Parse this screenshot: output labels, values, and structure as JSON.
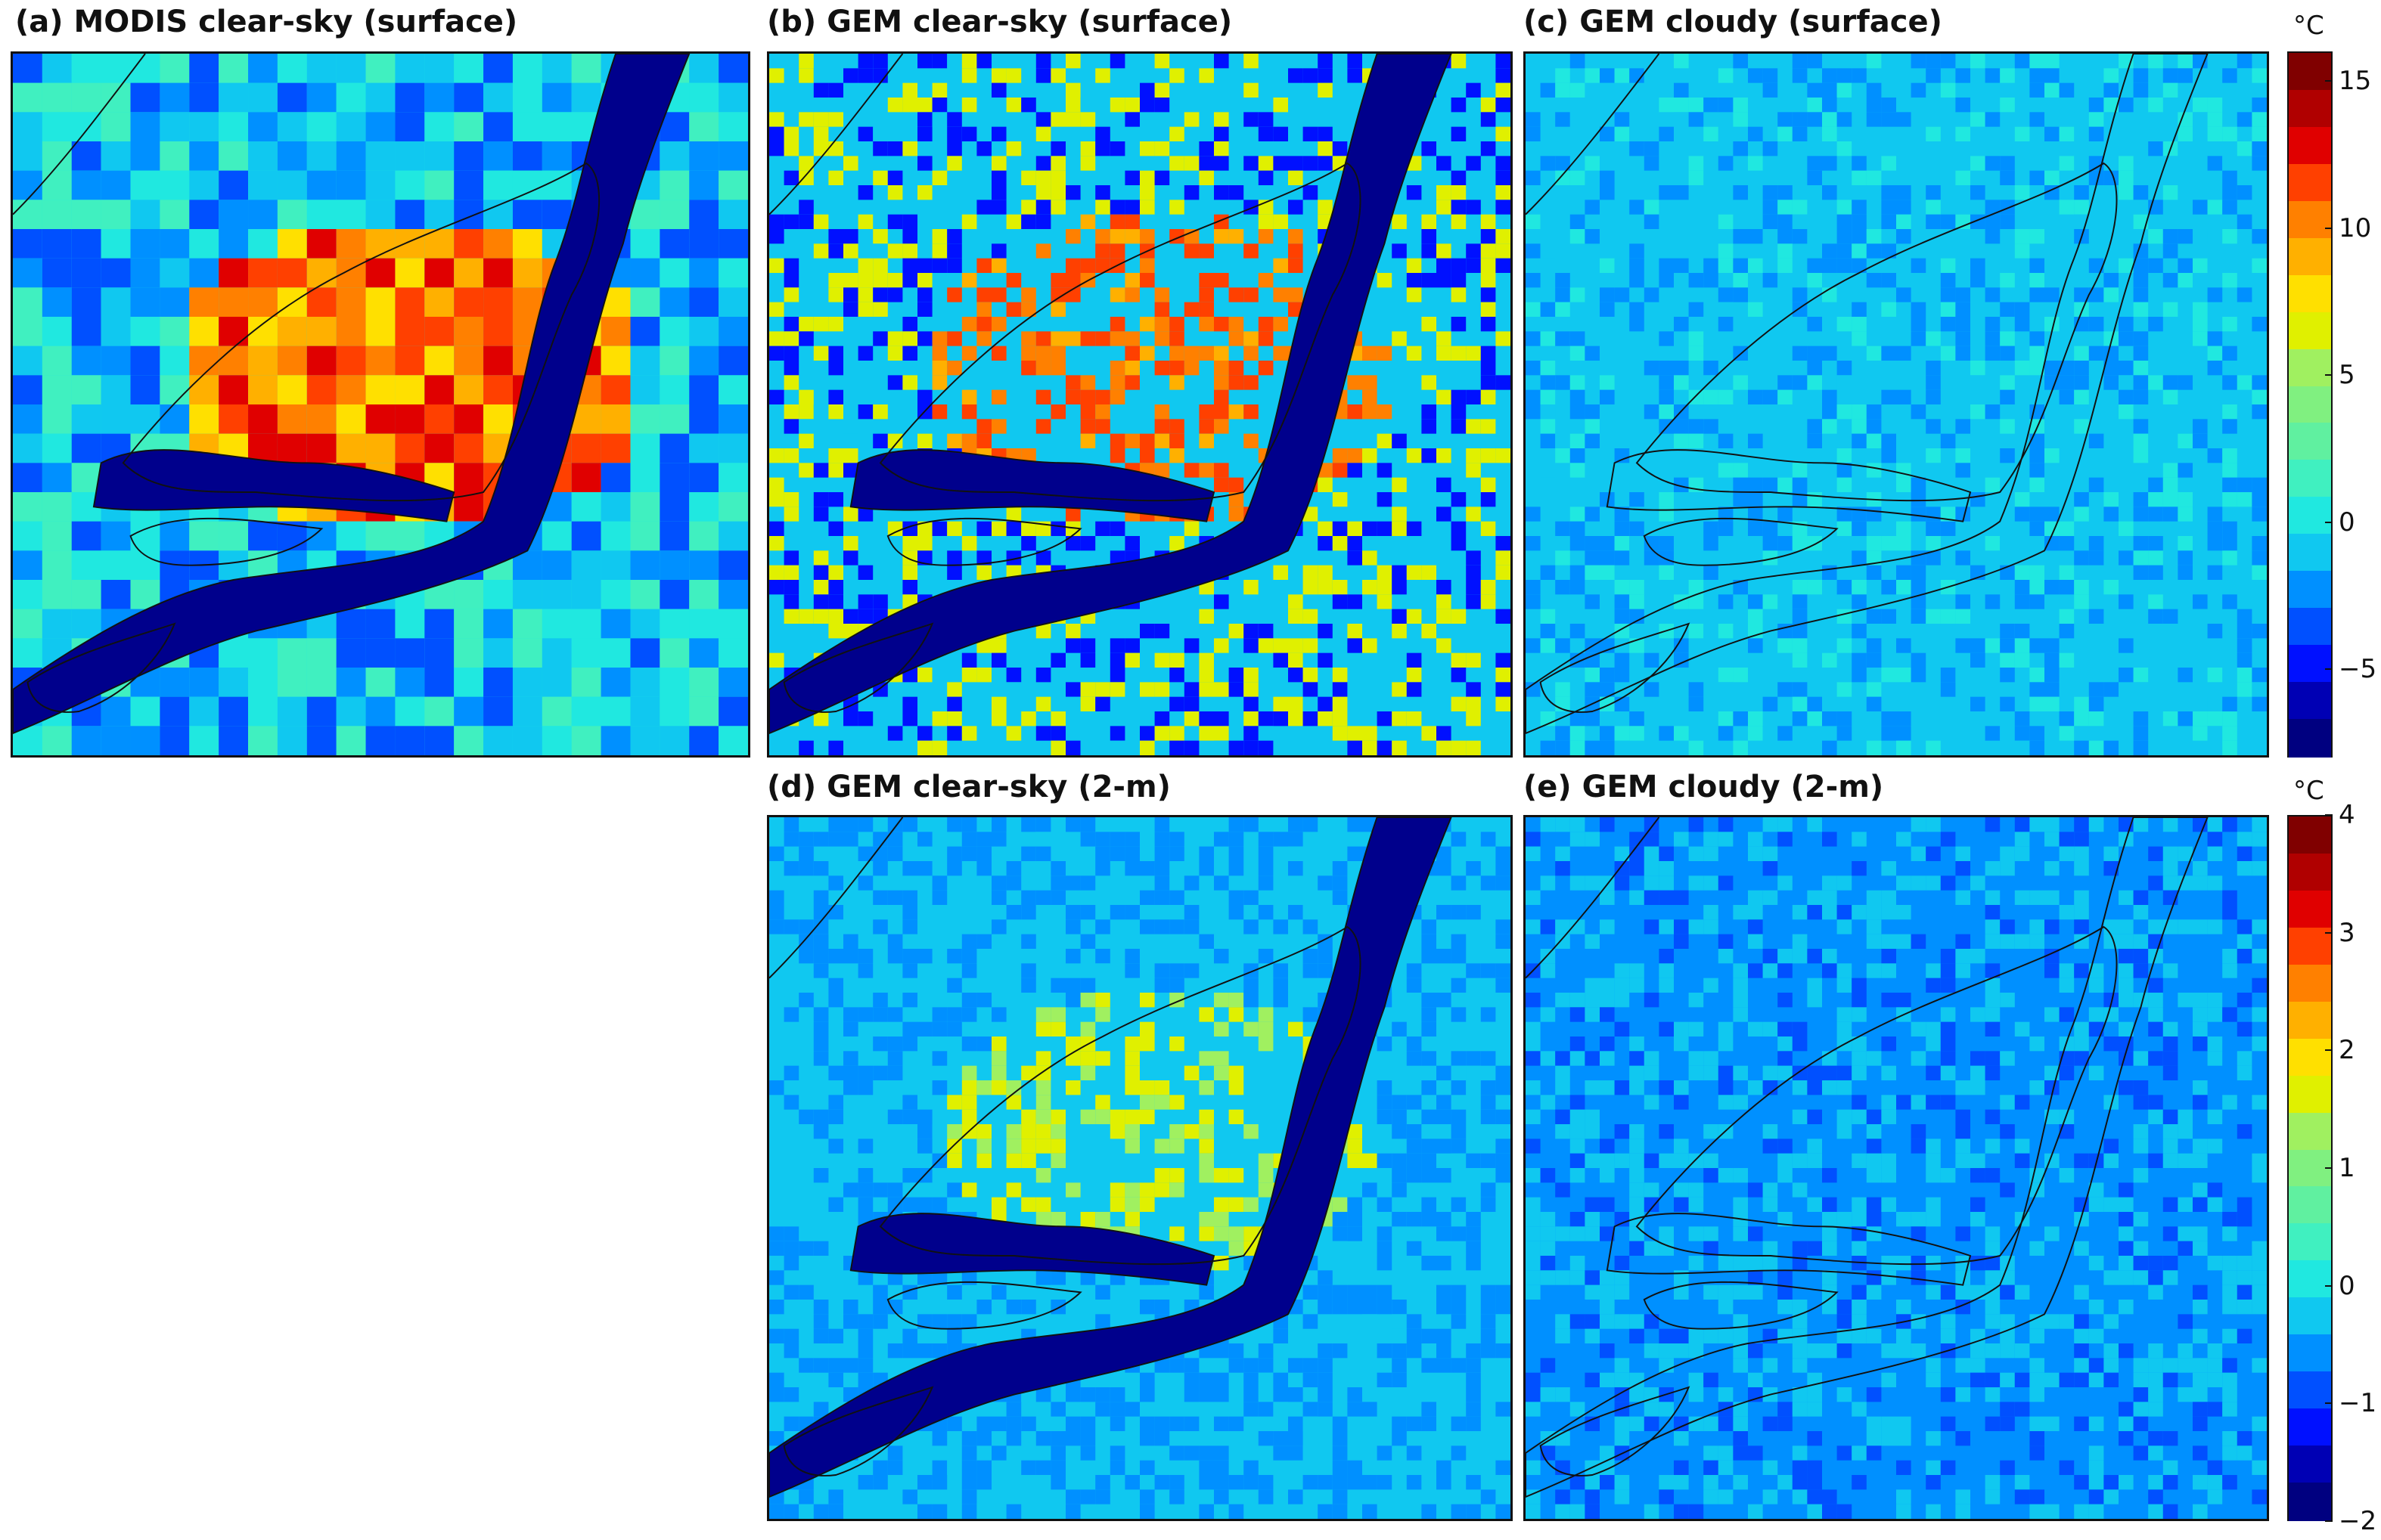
{
  "panels": [
    {
      "id": "a",
      "title": "(a) MODIS clear-sky (surface)",
      "scale": "top",
      "pattern": "modis"
    },
    {
      "id": "b",
      "title": "(b) GEM clear-sky (surface)",
      "scale": "top",
      "pattern": "gem-clear-surface"
    },
    {
      "id": "c",
      "title": "(c) GEM cloudy (surface)",
      "scale": "top",
      "pattern": "gem-cloudy-surface"
    },
    {
      "id": "d",
      "title": "(d) GEM clear-sky (2-m)",
      "scale": "bottom",
      "pattern": "gem-clear-2m"
    },
    {
      "id": "e",
      "title": "(e) GEM cloudy (2-m)",
      "scale": "bottom",
      "pattern": "gem-cloudy-2m"
    }
  ],
  "colorbars": {
    "top": {
      "unit": "°C",
      "min": -8,
      "max": 16,
      "step": 1.5,
      "ticks": [
        "15",
        "10",
        "5",
        "0",
        "−5"
      ],
      "tick_values": [
        15,
        10,
        5,
        0,
        -5
      ]
    },
    "bottom": {
      "unit": "°C",
      "min": -2,
      "max": 4,
      "step": 0.5,
      "ticks": [
        "4",
        "3",
        "2",
        "1",
        "0",
        "−1",
        "−2"
      ],
      "tick_values": [
        4,
        3,
        2,
        1,
        0,
        -1,
        -2
      ]
    }
  },
  "colors": {
    "jet": [
      "#000080",
      "#0000b4",
      "#0010ff",
      "#0050ff",
      "#0090ff",
      "#10c8f0",
      "#20e8e0",
      "#40f0c0",
      "#60f0a0",
      "#80f080",
      "#a0f060",
      "#e0f000",
      "#ffe000",
      "#ffb000",
      "#ff8000",
      "#ff4000",
      "#e00000",
      "#b00000",
      "#800000"
    ]
  }
}
